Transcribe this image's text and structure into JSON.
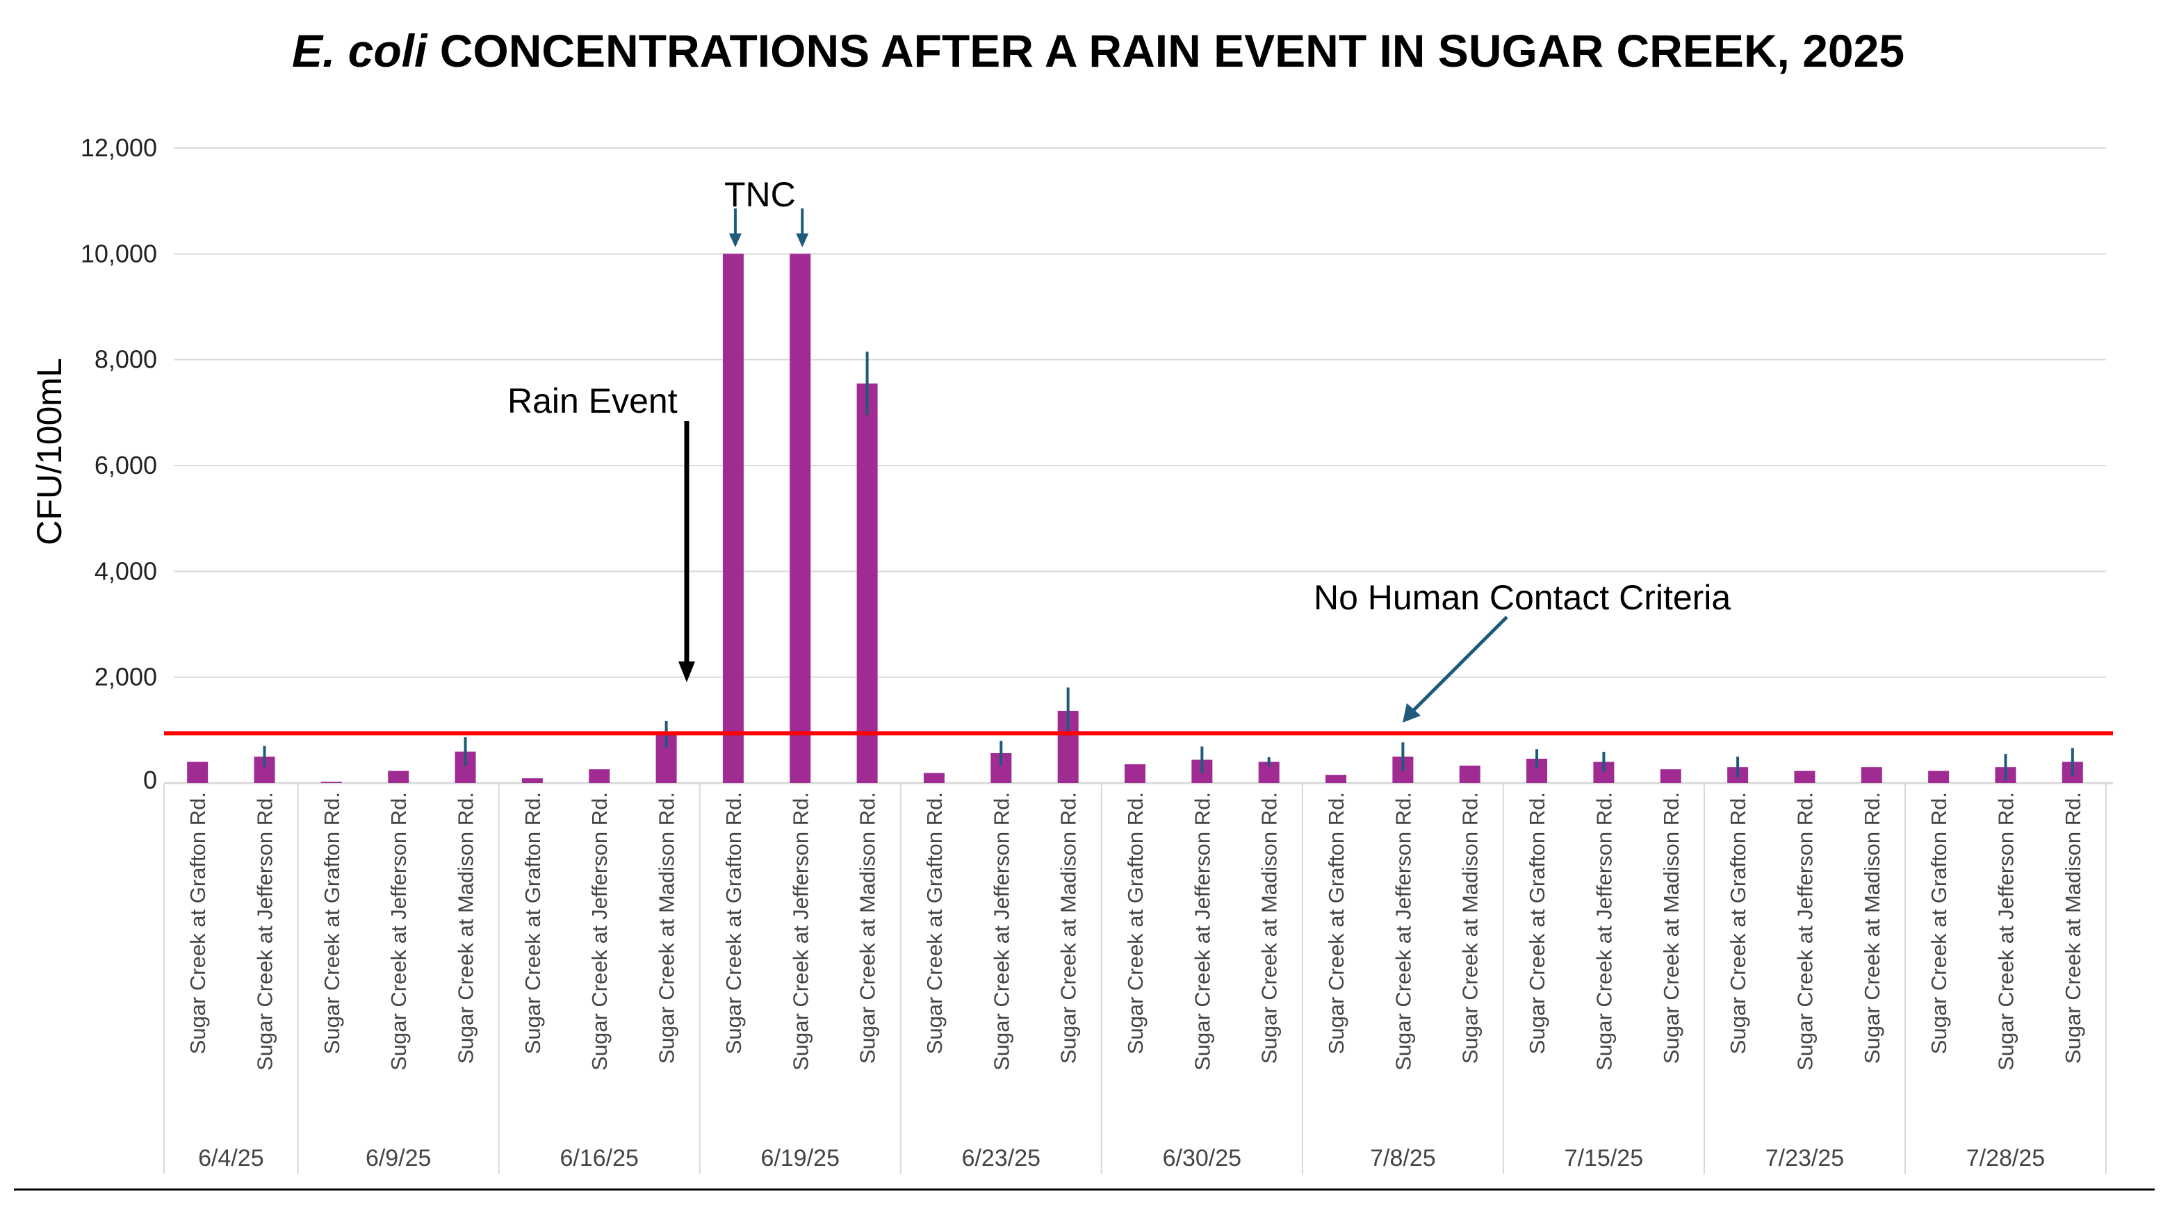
{
  "chart_data": {
    "type": "bar",
    "title_italic": "E. coli",
    "title_rest": " CONCENTRATIONS AFTER A RAIN EVENT IN SUGAR CREEK, 2025",
    "ylabel": "CFU/100mL",
    "xlabel": "",
    "ylim": [
      0,
      12000
    ],
    "yticks": [
      0,
      2000,
      4000,
      6000,
      8000,
      10000,
      12000
    ],
    "ytick_labels": [
      "0",
      "2,000",
      "4,000",
      "6,000",
      "8,000",
      "10,000",
      "12,000"
    ],
    "grid": true,
    "bar_color": "#A02B93",
    "error_color": "#1F5A7A",
    "criteria_color": "#FF0000",
    "criteria_value": 941,
    "groups": [
      {
        "date": "6/4/25",
        "sites": [
          "Sugar Creek at Grafton Rd.",
          "Sugar Creek at Jefferson Rd."
        ],
        "values": [
          400,
          500
        ],
        "errors": [
          0,
          200
        ]
      },
      {
        "date": "6/9/25",
        "sites": [
          "Sugar Creek at Grafton Rd.",
          "Sugar Creek at Jefferson Rd.",
          "Sugar Creek at Madison Rd."
        ],
        "values": [
          25,
          230,
          595
        ],
        "errors": [
          0,
          0,
          270
        ]
      },
      {
        "date": "6/16/25",
        "sites": [
          "Sugar Creek at Grafton Rd.",
          "Sugar Creek at Jefferson Rd.",
          "Sugar Creek at Madison Rd."
        ],
        "values": [
          90,
          260,
          920
        ],
        "errors": [
          0,
          0,
          250
        ]
      },
      {
        "date": "6/19/25",
        "sites": [
          "Sugar Creek at Grafton Rd.",
          "Sugar Creek at Jefferson Rd.",
          "Sugar Creek at Madison Rd."
        ],
        "values": [
          10000,
          10000,
          7550
        ],
        "errors": [
          0,
          0,
          600
        ]
      },
      {
        "date": "6/23/25",
        "sites": [
          "Sugar Creek at Grafton Rd.",
          "Sugar Creek at Jefferson Rd.",
          "Sugar Creek at Madison Rd."
        ],
        "values": [
          190,
          565,
          1365
        ],
        "errors": [
          0,
          230,
          440
        ]
      },
      {
        "date": "6/30/25",
        "sites": [
          "Sugar Creek at Grafton Rd.",
          "Sugar Creek at Jefferson Rd.",
          "Sugar Creek at Madison Rd."
        ],
        "values": [
          355,
          440,
          400
        ],
        "errors": [
          0,
          250,
          90
        ]
      },
      {
        "date": "7/8/25",
        "sites": [
          "Sugar Creek at Grafton Rd.",
          "Sugar Creek at Jefferson Rd.",
          "Sugar Creek at Madison Rd."
        ],
        "values": [
          155,
          500,
          330
        ],
        "errors": [
          0,
          270,
          0
        ]
      },
      {
        "date": "7/15/25",
        "sites": [
          "Sugar Creek at Grafton Rd.",
          "Sugar Creek at Jefferson Rd.",
          "Sugar Creek at Madison Rd."
        ],
        "values": [
          460,
          400,
          260
        ],
        "errors": [
          180,
          190,
          0
        ]
      },
      {
        "date": "7/23/25",
        "sites": [
          "Sugar Creek at Grafton Rd.",
          "Sugar Creek at Jefferson Rd.",
          "Sugar Creek at Madison Rd."
        ],
        "values": [
          300,
          230,
          300
        ],
        "errors": [
          200,
          0,
          0
        ]
      },
      {
        "date": "7/28/25",
        "sites": [
          "Sugar Creek at Grafton Rd.",
          "Sugar Creek at Jefferson Rd.",
          "Sugar Creek at Madison Rd."
        ],
        "values": [
          230,
          300,
          400
        ],
        "errors": [
          0,
          250,
          260
        ]
      }
    ],
    "annotations": {
      "tnc": "TNC",
      "rain_event": "Rain Event",
      "criteria": "No Human Contact Criteria"
    }
  }
}
